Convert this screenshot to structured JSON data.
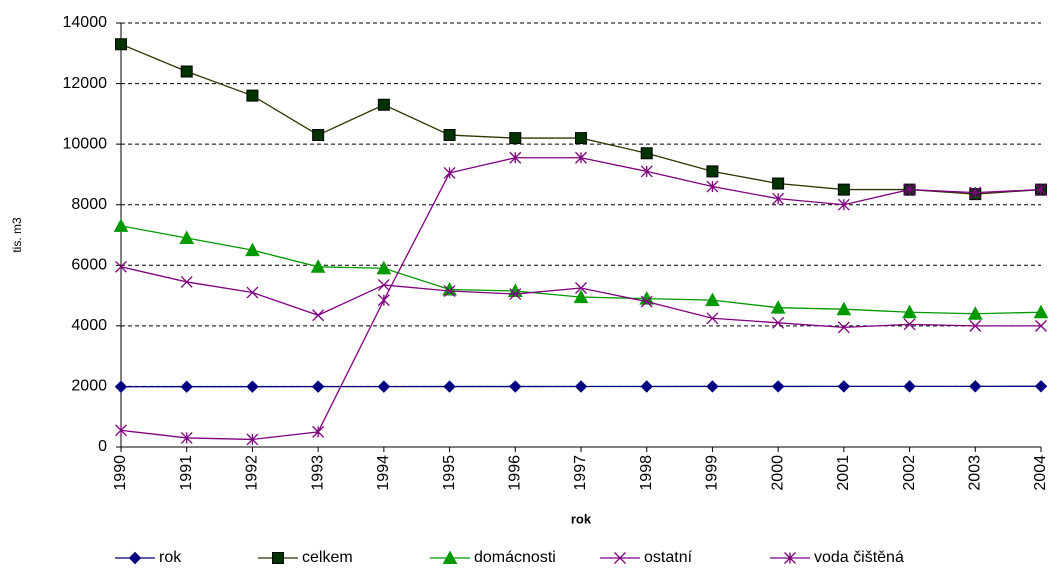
{
  "chart_data": {
    "type": "line",
    "x_label": "rok",
    "y_label": "tis. m3",
    "categories": [
      "1990",
      "1991",
      "1992",
      "1993",
      "1994",
      "1995",
      "1996",
      "1997",
      "1998",
      "1999",
      "2000",
      "2001",
      "2002",
      "2003",
      "2004"
    ],
    "ylim": [
      0,
      14000
    ],
    "yticks": [
      0,
      2000,
      4000,
      6000,
      8000,
      10000,
      12000,
      14000
    ],
    "grid": true,
    "legend": "bottom",
    "series": [
      {
        "name": "rok",
        "color": "#000080",
        "marker": "diamond",
        "values": [
          1990,
          1991,
          1992,
          1993,
          1994,
          1995,
          1996,
          1997,
          1998,
          1999,
          2000,
          2001,
          2002,
          2003,
          2004
        ]
      },
      {
        "name": "celkem",
        "color": "#333300",
        "marker": "square",
        "values": [
          13300,
          12400,
          11600,
          10300,
          11300,
          10300,
          10200,
          10200,
          9700,
          9100,
          8700,
          8500,
          8500,
          8350,
          8500
        ]
      },
      {
        "name": "domácnosti",
        "color": "#009900",
        "marker": "triangle",
        "values": [
          7300,
          6900,
          6500,
          5950,
          5900,
          5200,
          5150,
          4950,
          4900,
          4850,
          4600,
          4550,
          4450,
          4400,
          4450
        ]
      },
      {
        "name": "ostatní",
        "color": "#800080",
        "marker": "x",
        "values": [
          5950,
          5450,
          5100,
          4350,
          5350,
          5150,
          5050,
          5250,
          4800,
          4250,
          4100,
          3950,
          4050,
          4000,
          4000
        ]
      },
      {
        "name": "voda čištěná",
        "color": "#800080",
        "marker": "star",
        "values": [
          550,
          300,
          250,
          500,
          4850,
          9050,
          9550,
          9550,
          9100,
          8600,
          8200,
          8000,
          8500,
          8400,
          8500
        ]
      }
    ]
  }
}
